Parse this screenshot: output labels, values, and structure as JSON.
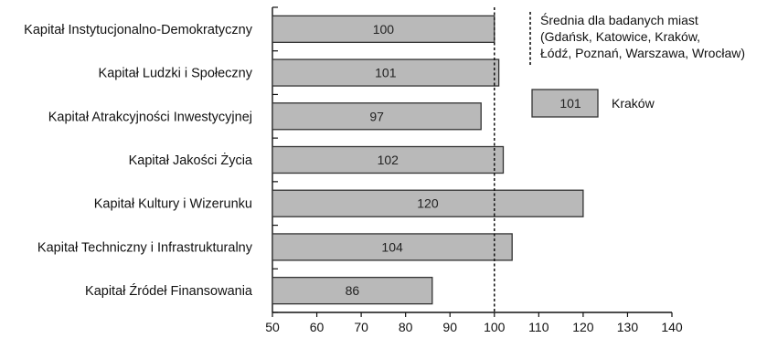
{
  "chart_data": {
    "type": "bar",
    "orientation": "horizontal",
    "title": "",
    "xlabel": "",
    "ylabel": "",
    "xlim": [
      50,
      140
    ],
    "x_ticks": [
      50,
      60,
      70,
      80,
      90,
      100,
      110,
      120,
      130,
      140
    ],
    "reference_line": 100,
    "grid": false,
    "categories": [
      "Kapitał Instytucjonalno-Demokratyczny",
      "Kapitał Ludzki i Społeczny",
      "Kapitał Atrakcyjności Inwestycyjnej",
      "Kapitał Jakości Życia",
      "Kapitał Kultury i Wizerunku",
      "Kapitał Techniczny i Infrastrukturalny",
      "Kapitał Źródeł Finansowania"
    ],
    "series": [
      {
        "name": "Kraków",
        "values": [
          100,
          101,
          97,
          102,
          120,
          104,
          86
        ]
      }
    ],
    "legend": {
      "placement": "top-right",
      "reference_lines": [
        "Średnia dla badanych miast",
        "(Gdańsk, Katowice, Kraków,",
        "Łódź, Poznań, Warszawa, Wrocław)"
      ],
      "sample_value": "101",
      "series_label": "Kraków"
    },
    "colors": {
      "bar_fill": "#b9b9b9",
      "bar_stroke": "#333333"
    }
  }
}
